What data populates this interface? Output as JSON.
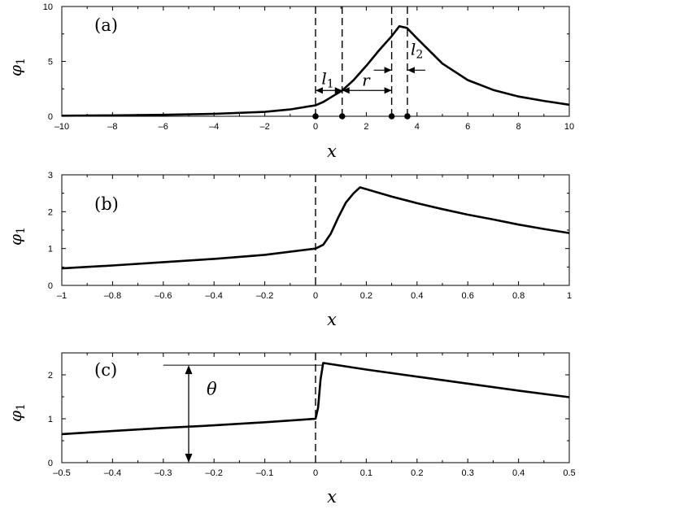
{
  "chart_data": [
    {
      "panel": "(a)",
      "type": "line",
      "xlabel": "x",
      "ylabel": "φ",
      "ylabel_sub": "1",
      "xlim": [
        -10,
        10
      ],
      "ylim": [
        0,
        10
      ],
      "xticks": [
        -10,
        -8,
        -6,
        -4,
        -2,
        0,
        2,
        4,
        6,
        8,
        10
      ],
      "xtick_labels": [
        "–10",
        "–8",
        "–6",
        "–4",
        "–2",
        "0",
        "2",
        "4",
        "6",
        "8",
        "10"
      ],
      "yticks": [
        0,
        5,
        10
      ],
      "ytick_labels": [
        "0",
        "5",
        "10"
      ],
      "x": [
        -10,
        -8,
        -6,
        -4,
        -2,
        -1,
        0,
        0.3,
        0.6,
        1.05,
        1.5,
        2.0,
        2.5,
        3.0,
        3.3,
        3.6,
        4.0,
        5.0,
        6.0,
        7.0,
        8.0,
        9.0,
        10.0
      ],
      "y": [
        0.05,
        0.08,
        0.13,
        0.22,
        0.4,
        0.62,
        1.0,
        1.3,
        1.72,
        2.35,
        3.3,
        4.6,
        6.0,
        7.3,
        8.2,
        8.05,
        7.1,
        4.8,
        3.3,
        2.4,
        1.8,
        1.4,
        1.05
      ],
      "vlines": [
        0,
        1.05,
        3.0,
        3.62
      ],
      "markers_x": [
        0,
        1.05,
        3.0,
        3.62
      ],
      "annotations": {
        "l1": {
          "text": "l",
          "sub": "1"
        },
        "r": {
          "text": "r"
        },
        "l2": {
          "text": "l",
          "sub": "2"
        }
      }
    },
    {
      "panel": "(b)",
      "type": "line",
      "xlabel": "x",
      "ylabel": "φ",
      "ylabel_sub": "1",
      "xlim": [
        -1,
        1
      ],
      "ylim": [
        0,
        3
      ],
      "xticks": [
        -1,
        -0.8,
        -0.6,
        -0.4,
        -0.2,
        0,
        0.2,
        0.4,
        0.6,
        0.8,
        1
      ],
      "xtick_labels": [
        "–1",
        "–0.8",
        "–0.6",
        "–0.4",
        "–0.2",
        "0",
        "0.2",
        "0.4",
        "0.6",
        "0.8",
        "1"
      ],
      "yticks": [
        0,
        1,
        2,
        3
      ],
      "ytick_labels": [
        "0",
        "1",
        "2",
        "3"
      ],
      "x": [
        -1,
        -0.8,
        -0.6,
        -0.4,
        -0.2,
        0,
        0.03,
        0.06,
        0.09,
        0.12,
        0.15,
        0.175,
        0.3,
        0.4,
        0.5,
        0.6,
        0.7,
        0.8,
        0.9,
        1.0
      ],
      "y": [
        0.46,
        0.54,
        0.63,
        0.72,
        0.83,
        1.0,
        1.1,
        1.4,
        1.85,
        2.25,
        2.5,
        2.66,
        2.41,
        2.23,
        2.07,
        1.92,
        1.79,
        1.65,
        1.53,
        1.42
      ],
      "vlines": [
        0
      ]
    },
    {
      "panel": "(c)",
      "type": "line",
      "xlabel": "x",
      "ylabel": "φ",
      "ylabel_sub": "1",
      "xlim": [
        -0.5,
        0.5
      ],
      "ylim": [
        0,
        2.5
      ],
      "xticks": [
        -0.5,
        -0.4,
        -0.3,
        -0.2,
        -0.1,
        0,
        0.1,
        0.2,
        0.3,
        0.4,
        0.5
      ],
      "xtick_labels": [
        "–0.5",
        "–0.4",
        "–0.3",
        "–0.2",
        "–0.1",
        "0",
        "0.1",
        "0.2",
        "0.3",
        "0.4",
        "0.5"
      ],
      "yticks": [
        0,
        1,
        2
      ],
      "ytick_labels": [
        "0",
        "1",
        "2"
      ],
      "x": [
        -0.5,
        -0.4,
        -0.3,
        -0.2,
        -0.1,
        0,
        0.005,
        0.01,
        0.015,
        0.1,
        0.2,
        0.3,
        0.4,
        0.5
      ],
      "y": [
        0.65,
        0.72,
        0.79,
        0.85,
        0.92,
        1.0,
        1.25,
        1.9,
        2.27,
        2.12,
        1.96,
        1.8,
        1.64,
        1.49
      ],
      "vlines": [
        0
      ],
      "annotations": {
        "theta": {
          "text": "θ",
          "x": -0.25,
          "y_from": 0,
          "y_to": 2.22
        }
      }
    }
  ]
}
